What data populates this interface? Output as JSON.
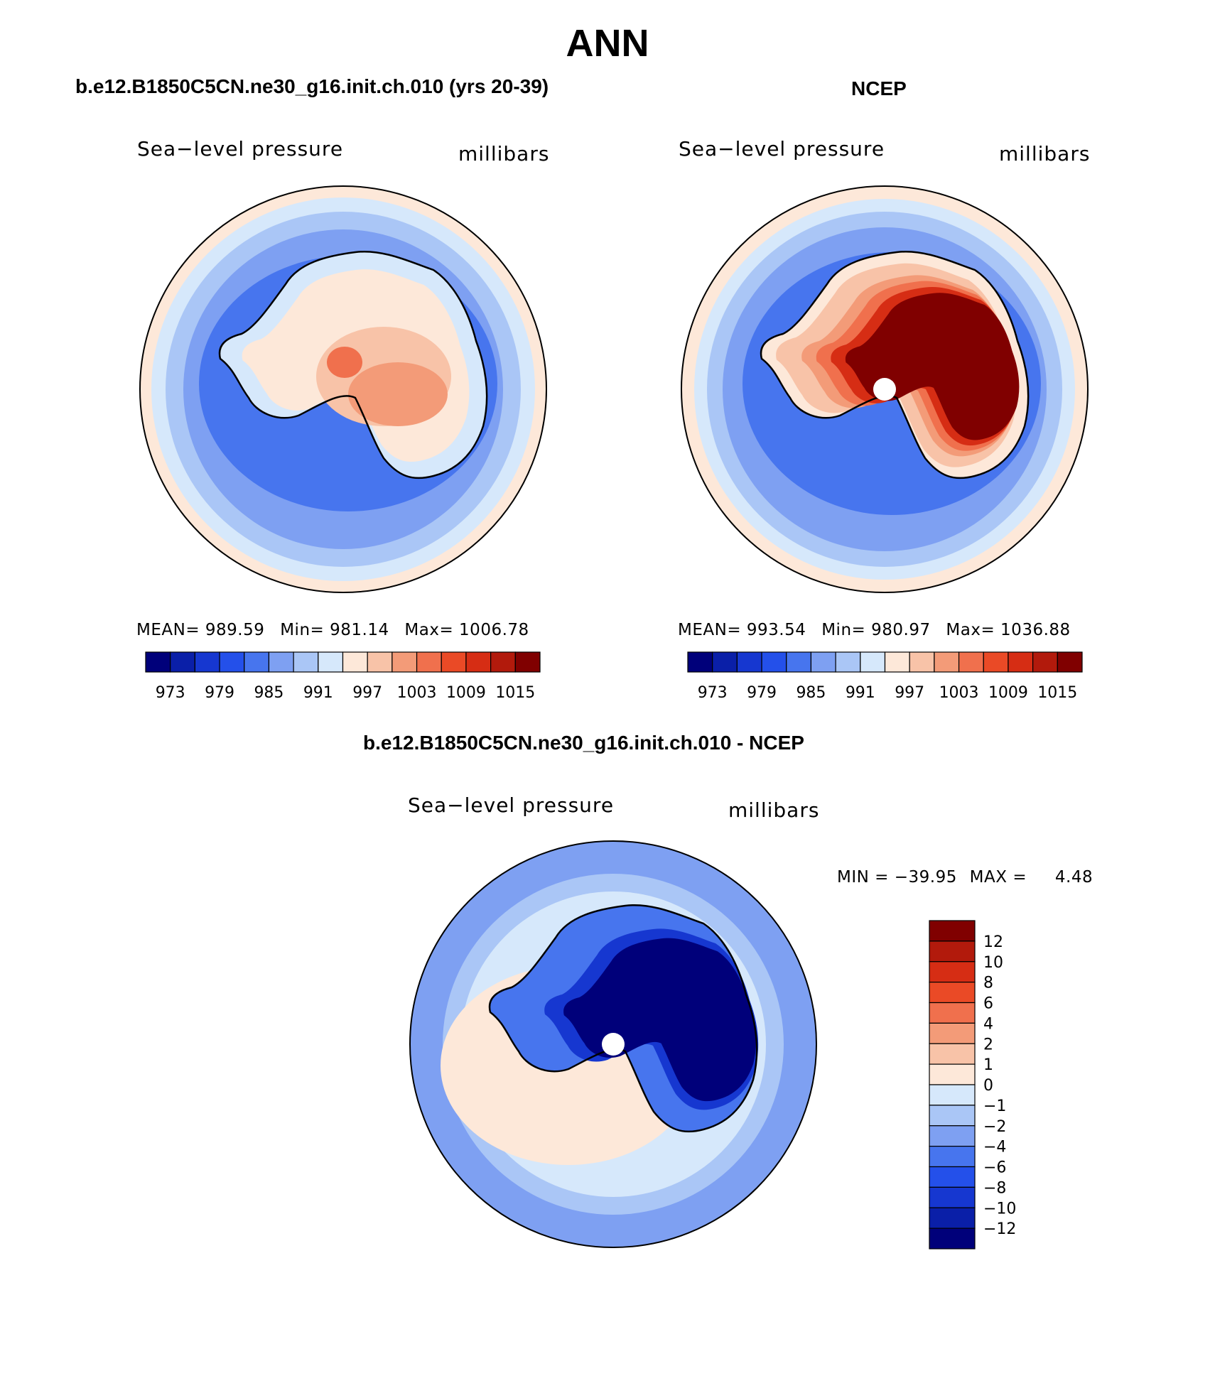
{
  "title": "ANN",
  "panels": [
    {
      "title": "b.e12.B1850C5CN.ne30_g16.init.ch.010 (yrs 20-39)",
      "variable": "Sea−level pressure",
      "units": "millibars",
      "stats": {
        "mean": "989.59",
        "min": "981.14",
        "max": "1006.78"
      }
    },
    {
      "title": "NCEP",
      "variable": "Sea−level pressure",
      "units": "millibars",
      "stats": {
        "mean": "993.54",
        "min": "980.97",
        "max": "1036.88"
      }
    },
    {
      "title": "b.e12.B1850C5CN.ne30_g16.init.ch.010 - NCEP",
      "variable": "Sea−level pressure",
      "units": "millibars",
      "stats": {
        "min": "−39.95",
        "max": "4.48"
      }
    }
  ],
  "labels": {
    "mean_label": "MEAN=",
    "min_label": "Min=",
    "max_label": "Max=",
    "diff_min_label": "MIN =",
    "diff_max_label": "MAX ="
  },
  "colorbar_abs": {
    "colors": [
      "#00007a",
      "#0a1fa8",
      "#1637d0",
      "#2450ea",
      "#4775ee",
      "#7ea0f2",
      "#aac6f6",
      "#d6e8fb",
      "#fde8d9",
      "#f8c3a8",
      "#f39b78",
      "#f0704d",
      "#ea4a26",
      "#d62d14",
      "#b21a0c",
      "#800000"
    ],
    "tick_labels": [
      "973",
      "979",
      "985",
      "991",
      "997",
      "1003",
      "1009",
      "1015"
    ]
  },
  "colorbar_diff": {
    "colors": [
      "#00007a",
      "#0a1fa8",
      "#1637d0",
      "#2450ea",
      "#4775ee",
      "#7ea0f2",
      "#aac6f6",
      "#d6e8fb",
      "#fde8d9",
      "#f8c3a8",
      "#f39b78",
      "#f0704d",
      "#ea4a26",
      "#d62d14",
      "#b21a0c",
      "#800000"
    ],
    "tick_labels": [
      "12",
      "10",
      "8",
      "6",
      "4",
      "2",
      "1",
      "0",
      "−1",
      "−2",
      "−4",
      "−6",
      "−8",
      "−10",
      "−12"
    ]
  },
  "map_fields": {
    "model": {
      "ocean_rings": [
        "#fde8d9",
        "#d6e8fb",
        "#aac6f6",
        "#7ea0f2",
        "#4775ee"
      ],
      "continent_levels": [
        "#d6e8fb",
        "#fde8d9",
        "#f8c3a8",
        "#f39b78",
        "#f0704d"
      ]
    },
    "ncep": {
      "ocean_rings": [
        "#fde8d9",
        "#d6e8fb",
        "#aac6f6",
        "#7ea0f2",
        "#4775ee"
      ],
      "continent_levels": [
        "#fde8d9",
        "#f8c3a8",
        "#f39b78",
        "#f0704d",
        "#d62d14",
        "#800000"
      ]
    },
    "diff": {
      "ocean_rings": [
        "#7ea0f2",
        "#aac6f6",
        "#d6e8fb",
        "#fde8d9"
      ],
      "continent_levels": [
        "#4775ee",
        "#1637d0",
        "#00007a"
      ]
    }
  }
}
